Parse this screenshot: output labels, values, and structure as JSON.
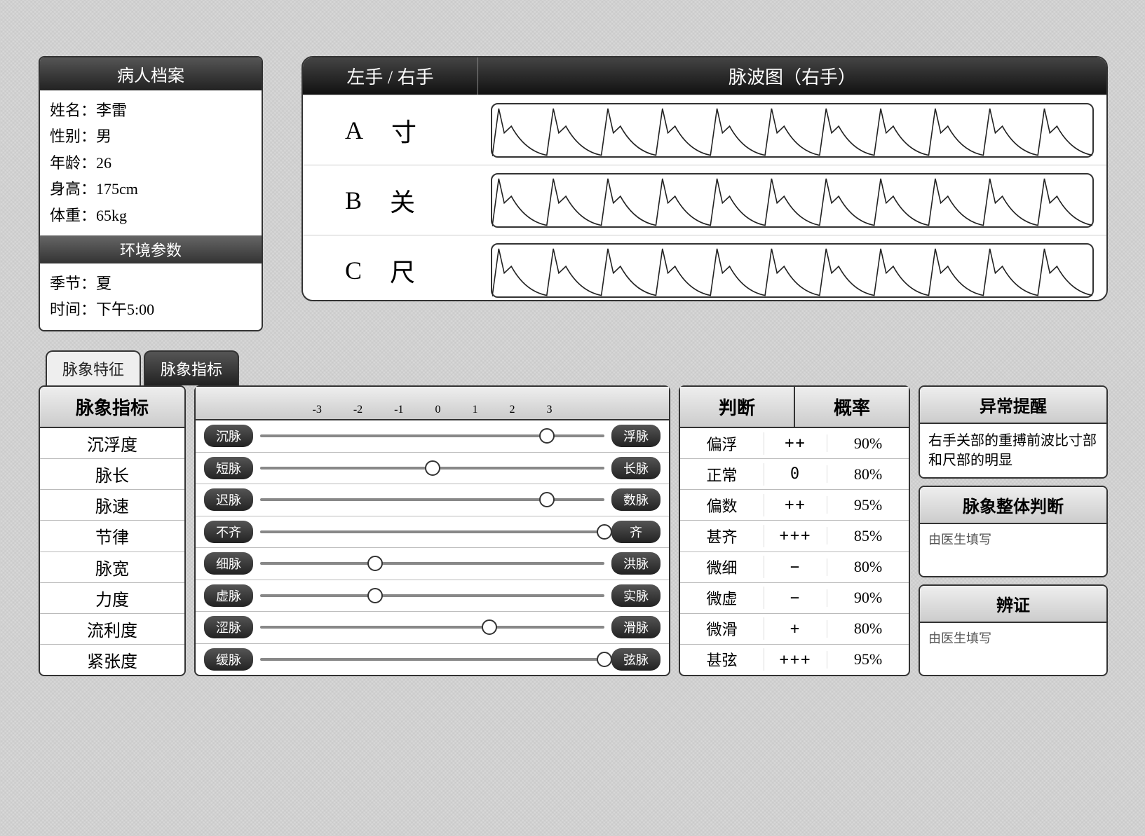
{
  "patient": {
    "panel_title": "病人档案",
    "name_label": "姓名：",
    "name": "李雷",
    "gender_label": "性别：",
    "gender": "男",
    "age_label": "年龄：",
    "age": "26",
    "height_label": "身高：",
    "height": "175cm",
    "weight_label": "体重：",
    "weight": "65kg"
  },
  "environment": {
    "panel_title": "环境参数",
    "season_label": "季节：",
    "season": "夏",
    "time_label": "时间：",
    "time": "下午5:00"
  },
  "pulse_wave": {
    "hand_switch_label": "左手 / 右手",
    "chart_title": "脉波图（右手）",
    "channels": [
      {
        "letter": "A",
        "name": "寸"
      },
      {
        "letter": "B",
        "name": "关"
      },
      {
        "letter": "C",
        "name": "尺"
      }
    ],
    "waveform": {
      "peaks": 11,
      "stroke": "#222222",
      "stroke_width": 1.6,
      "amplitude": 0.85,
      "decay_shape": "exponential-with-notch"
    }
  },
  "tabs": {
    "inactive": "脉象特征",
    "active": "脉象指标"
  },
  "metrics": {
    "col_title": "脉象指标",
    "scale_ticks": [
      "-3",
      "-2",
      "-1",
      "0",
      "1",
      "2",
      "3"
    ],
    "rows": [
      {
        "name": "沉浮度",
        "left_pill": "沉脉",
        "right_pill": "浮脉",
        "value": 2,
        "judgement": "偏浮",
        "mark": "++",
        "probability": "90%"
      },
      {
        "name": "脉长",
        "left_pill": "短脉",
        "right_pill": "长脉",
        "value": 0,
        "judgement": "正常",
        "mark": "0",
        "probability": "80%"
      },
      {
        "name": "脉速",
        "left_pill": "迟脉",
        "right_pill": "数脉",
        "value": 2,
        "judgement": "偏数",
        "mark": "++",
        "probability": "95%"
      },
      {
        "name": "节律",
        "left_pill": "不齐",
        "right_pill": "齐",
        "value": 3,
        "judgement": "甚齐",
        "mark": "+++",
        "probability": "85%"
      },
      {
        "name": "脉宽",
        "left_pill": "细脉",
        "right_pill": "洪脉",
        "value": -1,
        "judgement": "微细",
        "mark": "−",
        "probability": "80%"
      },
      {
        "name": "力度",
        "left_pill": "虚脉",
        "right_pill": "实脉",
        "value": -1,
        "judgement": "微虚",
        "mark": "−",
        "probability": "90%"
      },
      {
        "name": "流利度",
        "left_pill": "涩脉",
        "right_pill": "滑脉",
        "value": 1,
        "judgement": "微滑",
        "mark": "+",
        "probability": "80%"
      },
      {
        "name": "紧张度",
        "left_pill": "缓脉",
        "right_pill": "弦脉",
        "value": 3,
        "judgement": "甚弦",
        "mark": "+++",
        "probability": "95%"
      }
    ],
    "judge_header_left": "判断",
    "judge_header_right": "概率"
  },
  "anomaly": {
    "header": "异常提醒",
    "text": "右手关部的重搏前波比寸部和尺部的明显"
  },
  "overall": {
    "header": "脉象整体判断",
    "placeholder": "由医生填写"
  },
  "diagnosis": {
    "header": "辨证",
    "placeholder": "由医生填写"
  },
  "colors": {
    "panel_bg": "#ffffff",
    "border": "#333333",
    "dark_grad_top": "#555555",
    "dark_grad_bot": "#222222",
    "light_grad_top": "#eeeeee",
    "light_grad_bot": "#cccccc",
    "page_bg": "#d0d0d0"
  }
}
